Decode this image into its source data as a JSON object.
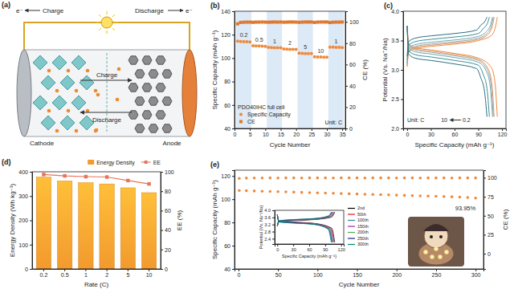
{
  "diagram": {
    "title": "(a)",
    "electron_left": "e⁻",
    "charge_top": "Charge",
    "discharge_top": "Discharge",
    "electron_right": "e⁻",
    "charge_inner": "Charge",
    "discharge_inner": "Discharge",
    "cathode": "Cathode",
    "anode": "Anode"
  },
  "chart_data": [
    {
      "title": "(b)",
      "type": "scatter",
      "x_label": "Cycle Number",
      "y_label": "Specific Capacity (mAh g⁻¹)",
      "y2_label": "CE (%)",
      "xlim": [
        0,
        36
      ],
      "xticks": [
        0,
        5,
        10,
        15,
        20,
        25,
        30,
        35
      ],
      "ylim": [
        40,
        140
      ],
      "yticks": [
        40,
        60,
        80,
        100,
        120,
        140
      ],
      "y2lim": [
        0,
        110
      ],
      "y2ticks": [
        0,
        20,
        40,
        60,
        80,
        100
      ],
      "legend": "lower left",
      "legend_title": "PDO40IHC full cell",
      "annotations": [
        "Unit: C"
      ],
      "rate_bands": [
        {
          "label": "0.2",
          "start": 0.5,
          "end": 5.5
        },
        {
          "label": "0.5",
          "start": 5.5,
          "end": 10.5
        },
        {
          "label": "1",
          "start": 10.5,
          "end": 15.5
        },
        {
          "label": "2",
          "start": 15.5,
          "end": 20.5
        },
        {
          "label": "5",
          "start": 20.5,
          "end": 25.5
        },
        {
          "label": "10",
          "start": 25.5,
          "end": 30.5
        },
        {
          "label": "1",
          "start": 30.5,
          "end": 35.5
        }
      ],
      "x": [
        1,
        2,
        3,
        4,
        5,
        6,
        7,
        8,
        9,
        10,
        11,
        12,
        13,
        14,
        15,
        16,
        17,
        18,
        19,
        20,
        21,
        22,
        23,
        24,
        25,
        26,
        27,
        28,
        29,
        30,
        31,
        32,
        33,
        34,
        35
      ],
      "series": [
        {
          "name": "Specific Capacity",
          "color": "#ee8a3c",
          "marker": "circle",
          "values": [
            114.5,
            114.2,
            114.0,
            113.9,
            113.8,
            110.6,
            110.4,
            110.3,
            110.2,
            110.1,
            109.2,
            109.0,
            108.9,
            108.8,
            108.8,
            107.8,
            107.6,
            107.5,
            107.4,
            107.4,
            104.2,
            104.0,
            103.9,
            103.8,
            103.8,
            101.2,
            101.0,
            100.9,
            100.8,
            100.8,
            109.4,
            109.3,
            109.2,
            109.1,
            109.0
          ]
        },
        {
          "name": "CE",
          "color": "#e0782e",
          "marker": "square",
          "axis": "y2",
          "values": [
            98.2,
            99.5,
            99.7,
            99.8,
            99.8,
            99.6,
            99.8,
            99.8,
            99.9,
            99.8,
            99.7,
            99.8,
            99.9,
            99.8,
            99.9,
            99.7,
            99.8,
            99.9,
            99.9,
            99.8,
            99.6,
            99.8,
            99.9,
            99.9,
            99.9,
            99.5,
            99.8,
            99.9,
            99.9,
            99.9,
            99.4,
            99.7,
            99.8,
            99.8,
            99.9
          ]
        }
      ]
    },
    {
      "title": "(c)",
      "type": "line",
      "x_label": "Specific Capacity (mAh g⁻¹)",
      "y_label": "Potential (Vs. Na⁺/Na)",
      "xlim": [
        -5,
        125
      ],
      "xticks": [
        0,
        30,
        60,
        90,
        120
      ],
      "ylim": [
        2,
        4
      ],
      "yticks": [
        {
          "value": 2,
          "label": "2.0"
        },
        2.5,
        {
          "value": 3,
          "label": "3.0"
        },
        3.5,
        {
          "value": 4,
          "label": "4.0"
        }
      ],
      "annotations": [
        "Unit: C",
        "10",
        "0.2"
      ],
      "series": [
        {
          "color": "#f0883e",
          "x": [
            0,
            2,
            10,
            30,
            60,
            90,
            106,
            112,
            114,
            null,
            0,
            2,
            10,
            30,
            60,
            90,
            106,
            111,
            114
          ],
          "values": [
            3.05,
            3.3,
            3.36,
            3.4,
            3.44,
            3.5,
            3.58,
            3.75,
            3.9,
            null,
            3.75,
            3.45,
            3.38,
            3.34,
            3.28,
            3.2,
            3.05,
            2.8,
            2.2
          ]
        },
        {
          "color": "#d69a6a",
          "x": [
            0,
            2,
            10,
            30,
            60,
            90,
            102,
            108,
            110,
            null,
            0,
            2,
            10,
            30,
            60,
            90,
            102,
            107,
            110
          ],
          "values": [
            3.07,
            3.32,
            3.38,
            3.42,
            3.46,
            3.52,
            3.6,
            3.76,
            3.9,
            null,
            3.75,
            3.43,
            3.36,
            3.32,
            3.26,
            3.18,
            3.03,
            2.78,
            2.2
          ]
        },
        {
          "color": "#a5a5a0",
          "x": [
            0,
            2,
            10,
            30,
            60,
            90,
            101,
            107,
            109,
            null,
            0,
            2,
            10,
            30,
            60,
            90,
            101,
            106,
            109
          ],
          "values": [
            3.09,
            3.34,
            3.4,
            3.44,
            3.48,
            3.54,
            3.62,
            3.77,
            3.9,
            null,
            3.75,
            3.41,
            3.34,
            3.3,
            3.24,
            3.16,
            3.01,
            2.76,
            2.2
          ]
        },
        {
          "color": "#6fa8b0",
          "x": [
            0,
            2,
            10,
            30,
            60,
            90,
            100,
            106,
            108,
            null,
            0,
            2,
            10,
            30,
            60,
            90,
            100,
            105,
            108
          ],
          "values": [
            3.12,
            3.37,
            3.43,
            3.47,
            3.51,
            3.57,
            3.65,
            3.79,
            3.9,
            null,
            3.75,
            3.38,
            3.31,
            3.27,
            3.21,
            3.13,
            2.98,
            2.73,
            2.2
          ]
        },
        {
          "color": "#3d8f9b",
          "x": [
            0,
            2,
            10,
            30,
            60,
            90,
            96,
            102,
            104,
            null,
            0,
            2,
            10,
            30,
            60,
            90,
            96,
            101,
            104
          ],
          "values": [
            3.17,
            3.42,
            3.48,
            3.52,
            3.56,
            3.62,
            3.7,
            3.81,
            3.9,
            null,
            3.75,
            3.33,
            3.26,
            3.22,
            3.16,
            3.08,
            2.93,
            2.68,
            2.2
          ]
        },
        {
          "color": "#2c6f80",
          "x": [
            0,
            2,
            10,
            30,
            60,
            88,
            93,
            99,
            101,
            null,
            0,
            2,
            10,
            30,
            60,
            88,
            93,
            98,
            101
          ],
          "values": [
            3.23,
            3.48,
            3.54,
            3.58,
            3.62,
            3.68,
            3.76,
            3.84,
            3.9,
            null,
            3.75,
            3.27,
            3.2,
            3.16,
            3.1,
            3.02,
            2.87,
            2.62,
            2.2
          ]
        }
      ]
    },
    {
      "title": "(d)",
      "type": "bar",
      "x_label": "Rate (C)",
      "y_label": "Energy Density (Wh kg⁻¹)",
      "y2_label": "EE (%)",
      "categories": [
        "0.2",
        "0.5",
        "1",
        "2",
        "5",
        "10"
      ],
      "ylim": [
        0,
        400
      ],
      "yticks": [
        0,
        100,
        200,
        300,
        400
      ],
      "y2lim": [
        0,
        100
      ],
      "y2ticks": [
        0,
        20,
        40,
        60,
        80,
        100
      ],
      "legend": "upper right",
      "series": [
        {
          "name": "Energy Density",
          "type": "bar",
          "color": "#f29a2e",
          "values": [
            378,
            362,
            355,
            350,
            334,
            314
          ]
        },
        {
          "name": "EE",
          "type": "line",
          "axis": "y2",
          "color": "#e8735a",
          "marker": "square",
          "values": [
            97.2,
            95.8,
            95.0,
            94.6,
            91.0,
            87.5
          ]
        }
      ]
    },
    {
      "title": "(e)",
      "type": "scatter",
      "x_label": "Cycle Number",
      "y_label": "Specific Capacity (mAh g⁻¹)",
      "y2_label": "CE (%)",
      "xlim": [
        -5,
        310
      ],
      "xticks": [
        0,
        50,
        100,
        150,
        200,
        250,
        300
      ],
      "ylim": [
        40,
        125
      ],
      "yticks": [
        40,
        60,
        80,
        100,
        120
      ],
      "y2lim": [
        -20,
        110
      ],
      "y2ticks": [
        0,
        25,
        50,
        75,
        100
      ],
      "annotations": [
        "93.95%"
      ],
      "x": [
        1,
        10,
        20,
        30,
        40,
        50,
        60,
        70,
        80,
        90,
        100,
        110,
        120,
        130,
        140,
        150,
        160,
        170,
        180,
        190,
        200,
        210,
        220,
        230,
        240,
        250,
        260,
        270,
        280,
        290,
        300
      ],
      "series": [
        {
          "color": "#ee8a3c",
          "marker": "circle",
          "values": [
            107.5,
            107.3,
            107.1,
            106.9,
            106.7,
            106.5,
            106.3,
            106.1,
            105.9,
            105.7,
            105.5,
            105.3,
            105.1,
            104.9,
            104.7,
            104.5,
            104.3,
            104.1,
            103.9,
            103.7,
            103.5,
            103.3,
            103.1,
            102.9,
            102.7,
            102.5,
            102.3,
            102.1,
            101.8,
            101.5,
            101.0
          ]
        },
        {
          "color": "#ee8a3c",
          "marker": "circle",
          "axis": "y2",
          "values": [
            99.1,
            99.6,
            99.7,
            99.7,
            99.8,
            99.7,
            99.8,
            99.8,
            99.7,
            99.8,
            99.8,
            99.8,
            99.7,
            99.8,
            99.8,
            99.8,
            99.7,
            99.8,
            99.8,
            99.8,
            99.7,
            99.8,
            99.8,
            99.7,
            99.8,
            99.8,
            99.8,
            99.7,
            99.8,
            99.8,
            99.8
          ]
        }
      ]
    },
    {
      "type": "line",
      "x_label": "Specific Capacity (mAh g⁻¹)",
      "y_label": "Potential (Vs. Na⁺/Na)",
      "xlim": [
        -5,
        125
      ],
      "xticks": [
        0,
        30,
        60,
        90,
        120
      ],
      "ylim": [
        2.1,
        4.0
      ],
      "yticks": [
        2.4,
        2.8,
        3.2,
        3.6,
        {
          "value": 4,
          "label": "4.0"
        }
      ],
      "legend": "right",
      "series": [
        {
          "name": "2nd",
          "color": "#000000",
          "x": [
            0,
            3,
            30,
            70,
            102,
            108,
            null,
            0,
            3,
            30,
            70,
            102,
            108
          ],
          "values": [
            3.1,
            3.35,
            3.42,
            3.48,
            3.62,
            3.9,
            null,
            3.75,
            3.4,
            3.34,
            3.26,
            3.0,
            2.2
          ]
        },
        {
          "name": "50th",
          "color": "#e41a1c",
          "x": [
            0,
            3,
            30,
            70,
            101,
            107,
            null,
            0,
            3,
            30,
            70,
            101,
            107
          ],
          "values": [
            3.11,
            3.36,
            3.43,
            3.49,
            3.63,
            3.9,
            null,
            3.75,
            3.39,
            3.33,
            3.25,
            2.99,
            2.2
          ]
        },
        {
          "name": "100th",
          "color": "#377eb8",
          "x": [
            0,
            3,
            30,
            70,
            99.5,
            105.5,
            null,
            0,
            3,
            30,
            70,
            99.5,
            105.5
          ],
          "values": [
            3.12,
            3.37,
            3.44,
            3.5,
            3.64,
            3.9,
            null,
            3.75,
            3.38,
            3.32,
            3.24,
            2.98,
            2.2
          ]
        },
        {
          "name": "150th",
          "color": "#9c27b0",
          "x": [
            0,
            3,
            30,
            70,
            98.5,
            104.5,
            null,
            0,
            3,
            30,
            70,
            98.5,
            104.5
          ],
          "values": [
            3.13,
            3.38,
            3.45,
            3.51,
            3.65,
            3.9,
            null,
            3.75,
            3.37,
            3.31,
            3.23,
            2.97,
            2.2
          ]
        },
        {
          "name": "200th",
          "color": "#4caf50",
          "x": [
            0,
            3,
            30,
            70,
            97.5,
            103.5,
            null,
            0,
            3,
            30,
            70,
            97.5,
            103.5
          ],
          "values": [
            3.14,
            3.39,
            3.46,
            3.52,
            3.66,
            3.9,
            null,
            3.75,
            3.36,
            3.3,
            3.22,
            2.96,
            2.2
          ]
        },
        {
          "name": "250th",
          "color": "#1a237e",
          "x": [
            0,
            3,
            30,
            70,
            96.5,
            102.5,
            null,
            0,
            3,
            30,
            70,
            96.5,
            102.5
          ],
          "values": [
            3.15,
            3.4,
            3.47,
            3.53,
            3.67,
            3.9,
            null,
            3.75,
            3.35,
            3.29,
            3.21,
            2.95,
            2.2
          ]
        },
        {
          "name": "300th",
          "color": "#00897b",
          "x": [
            0,
            3,
            30,
            70,
            95.5,
            101.5,
            null,
            0,
            3,
            30,
            70,
            95.5,
            101.5
          ],
          "values": [
            3.16,
            3.41,
            3.48,
            3.54,
            3.68,
            3.9,
            null,
            3.75,
            3.34,
            3.28,
            3.2,
            2.94,
            2.2
          ]
        }
      ]
    }
  ]
}
